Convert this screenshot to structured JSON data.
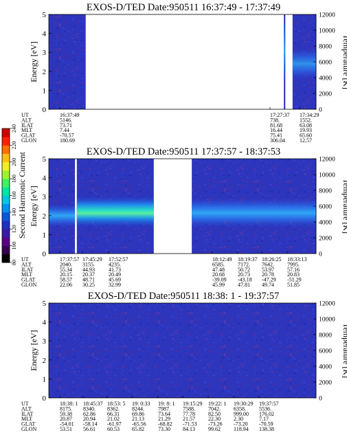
{
  "chart_data": [
    {
      "type": "heatmap",
      "title": "EXOS-D/TED   Date:950511  16:37:49 - 17:37:49",
      "ylabel": "Energy [eV]",
      "ylabel_right": "Temperature [K]",
      "ylim": [
        0,
        5
      ],
      "yticks": [
        "0",
        "1",
        "2",
        "3",
        "4",
        "5"
      ],
      "ylim_right": [
        0,
        12000
      ],
      "yticks_right": [
        "0",
        "2000",
        "4000",
        "6000",
        "8000",
        "10000",
        "12000"
      ],
      "data_coverage": [
        [
          0.0,
          0.138
        ],
        [
          0.8795,
          0.885
        ],
        [
          0.912,
          1.0
        ]
      ],
      "info_rows": [
        "UT",
        "ALT",
        "ILAT",
        "MLT",
        "GLAT",
        "GLON"
      ],
      "info_columns": [
        {
          "values": [
            "16:37:49",
            "5146.",
            "73.71",
            "7.44",
            "-70.57",
            "180.69"
          ]
        },
        {
          "values": [
            "17:27:37",
            "738.",
            "81.68",
            "16.44",
            "75.41",
            "306.04"
          ]
        },
        {
          "values": [
            "17:34:29",
            "1552.",
            "63.08",
            "19.93",
            "65.60",
            "12.57"
          ]
        }
      ]
    },
    {
      "type": "heatmap",
      "title": "EXOS-D/TED   Date:950511  17:37:57 - 18:37:53",
      "ylabel": "Energy [eV]",
      "ylabel_right": "Temperature [K]",
      "ylim": [
        0,
        5
      ],
      "yticks": [
        "0",
        "1",
        "2",
        "3",
        "4",
        "5"
      ],
      "ylim_right": [
        0,
        12000
      ],
      "yticks_right": [
        "0",
        "2000",
        "4000",
        "6000",
        "8000",
        "10000",
        "12000"
      ],
      "data_coverage": [
        [
          0.0,
          0.098
        ],
        [
          0.105,
          0.393
        ],
        [
          0.535,
          1.0
        ]
      ],
      "info_rows": [
        "UT",
        "ALT",
        "ILAT",
        "MLT",
        "GLAT",
        "GLON"
      ],
      "info_columns": [
        {
          "values": [
            "17:37:57",
            "2040.",
            "55.34",
            "20.15",
            "58.57",
            "22.06"
          ]
        },
        {
          "values": [
            "17:45:29",
            "3155.",
            "44.93",
            "20.37",
            "48.71",
            "30.25"
          ]
        },
        {
          "values": [
            "17:52:57",
            "4235.",
            "41.73",
            "20.49",
            "45.69",
            "32.99"
          ]
        },
        {
          "values": [
            "18:12:49",
            "6585.",
            "47.48",
            "20.68",
            "-39.09",
            "45.99"
          ]
        },
        {
          "values": [
            "18:19:37",
            "7172.",
            "50.72",
            "20.73",
            "-43.18",
            "47.81"
          ]
        },
        {
          "values": [
            "18:26:25",
            "7642.",
            "53.97",
            "20.78",
            "-47.29",
            "49.74"
          ]
        },
        {
          "values": [
            "18:33:13",
            "7995.",
            "57.16",
            "20.83",
            "-51.29",
            "51.85"
          ]
        }
      ]
    },
    {
      "type": "heatmap",
      "title": "EXOS-D/TED   Date:950511  18:38: 1 - 19:37:57",
      "ylabel": "Energy [eV]",
      "ylabel_right": "Temperature [K]",
      "ylim": [
        0,
        5
      ],
      "yticks": [
        "0",
        "1",
        "2",
        "3",
        "4",
        "5"
      ],
      "ylim_right": [
        0,
        12000
      ],
      "yticks_right": [
        "0",
        "2000",
        "4000",
        "6000",
        "8000",
        "10000",
        "12000"
      ],
      "data_coverage": [
        [
          0.0,
          1.0
        ]
      ],
      "info_rows": [
        "UT",
        "ALT",
        "ILAT",
        "MLT",
        "GLAT",
        "GLON"
      ],
      "info_columns": [
        {
          "values": [
            "18:38: 1",
            "8175.",
            "59.38",
            "20.87",
            "-54.01",
            "53.51"
          ]
        },
        {
          "values": [
            "18:45:37",
            "8340.",
            "62.86",
            "20.94",
            "-58.14",
            "56.61"
          ]
        },
        {
          "values": [
            "18:53: 5",
            "8362.",
            "66.31",
            "21.02",
            "-61.97",
            "60.53"
          ]
        },
        {
          "values": [
            "19: 0:33",
            "8244.",
            "69.86",
            "21.13",
            "-65.56",
            "65.82"
          ]
        },
        {
          "values": [
            "19: 8: 1",
            "7987.",
            "73.64",
            "21.29",
            "-68.82",
            "73.30"
          ]
        },
        {
          "values": [
            "19:15:29",
            "7588.",
            "77.78",
            "21.57",
            "-71.53",
            "84.13"
          ]
        },
        {
          "values": [
            "19:22: 1",
            "7042.",
            "82.50",
            "22.30",
            "-73.26",
            "99.62"
          ]
        },
        {
          "values": [
            "19:30:29",
            "6358.",
            "999.00",
            "2.30",
            "-73.20",
            "118.94"
          ]
        },
        {
          "values": [
            "19:37:57",
            "5536.",
            "176.02",
            "7.17",
            "-70.59",
            "138.38"
          ]
        }
      ]
    }
  ],
  "colorbar": {
    "label": "Second Harmonic Current",
    "ticks": [
      "80",
      "100",
      "120",
      "140",
      "160",
      "180",
      "200",
      "220",
      "240"
    ],
    "colors": [
      "#000000",
      "#3a0050",
      "#5b0080",
      "#3a1aa8",
      "#1c2fc6",
      "#0a55e0",
      "#0090f0",
      "#00c8e0",
      "#00e8a0",
      "#40f060",
      "#a0f030",
      "#f0f020",
      "#ffc010",
      "#ff7000",
      "#ff2000",
      "#d00000"
    ]
  }
}
